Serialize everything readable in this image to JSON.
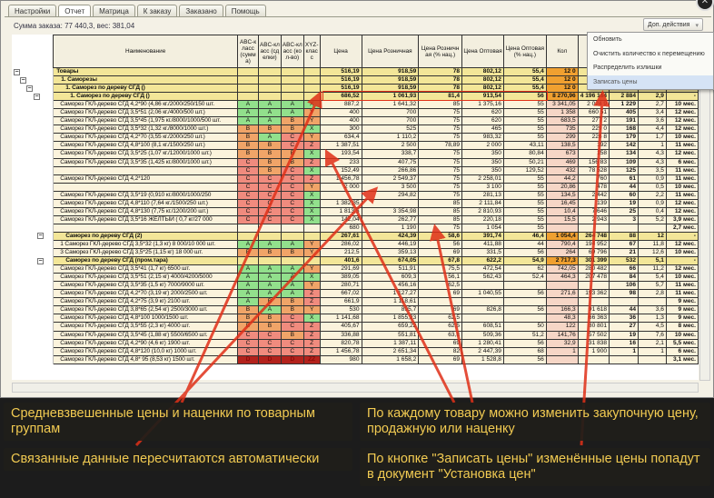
{
  "tabs": [
    "Настройки",
    "Отчет",
    "Матрица",
    "К заказу",
    "Заказано",
    "Помощь"
  ],
  "active_tab": 1,
  "order_summary": "Сумма заказа: 77 440,3, вес: 381,04",
  "actions_button": "Доп. действия",
  "menu": [
    "Обновить",
    "Очистить количество к перемещению",
    "Распределить излишки",
    "Записать цены"
  ],
  "menu_highlighted": 3,
  "columns": [
    "Наименование",
    "ABC-класс (сумма)",
    "ABC-класс (сделки)",
    "ABC-класс (кол-во)",
    "XYZ-класс",
    "Цена",
    "Цена Розничная",
    "Цена Розничная (% нац.)",
    "Цена Оптовая",
    "Цена Оптовая (% нац.)",
    "Кол",
    "",
    "",
    "",
    ""
  ],
  "rows": [
    {
      "t": "g",
      "lvl": 0,
      "v": [
        "Товары",
        "",
        "",
        "",
        "",
        "516,19",
        "918,59",
        "78",
        "802,12",
        "55,4",
        "12 0",
        "",
        "",
        "",
        ""
      ]
    },
    {
      "t": "g",
      "lvl": 1,
      "v": [
        "1. Саморезы",
        "",
        "",
        "",
        "",
        "516,19",
        "918,59",
        "78",
        "802,12",
        "55,4",
        "12 0",
        "",
        "",
        "",
        ""
      ]
    },
    {
      "t": "g",
      "lvl": 2,
      "v": [
        "1. Саморез по дереву  СГД ()",
        "",
        "",
        "",
        "",
        "516,19",
        "918,59",
        "78",
        "802,12",
        "55,4",
        "12 0",
        "",
        "",
        "",
        ""
      ]
    },
    {
      "t": "g",
      "lvl": 3,
      "v": [
        "1. Саморез по дереву  СГД ()",
        "",
        "",
        "",
        "",
        "686,52",
        "1 061,93",
        "81,4",
        "913,54",
        "56",
        "8 270,96",
        "4 196 164",
        "2 884",
        "2,9",
        "-"
      ]
    },
    {
      "t": "i",
      "v": [
        "Саморез ГКЛ-дерево СГД 4,2*90 (4,86 кг./2000/250/150 шт.",
        "A",
        "A",
        "A",
        "X",
        "887,2",
        "1 641,32",
        "85",
        "1 375,16",
        "55",
        "3 341,05",
        "2 024 9",
        "1 229",
        "2,7",
        "10 мес."
      ]
    },
    {
      "t": "i",
      "v": [
        "Саморез ГКЛ-дерево СГД 3,5*51 (2,06 кг./4000/500 шт.)",
        "A",
        "A",
        "A",
        "Y",
        "400",
        "700",
        "75",
        "620",
        "55",
        "1 358",
        "660 51",
        "405",
        "3,4",
        "12 мес."
      ]
    },
    {
      "t": "i",
      "v": [
        "Саморез ГКЛ-дерево СГД 3,5*45 (1,975 кг./8000/1000/500 шт.",
        "A",
        "A",
        "B",
        "Y",
        "400",
        "700",
        "75",
        "620",
        "55",
        "683,5",
        "277 2",
        "191",
        "3,6",
        "12 мес."
      ]
    },
    {
      "t": "i",
      "v": [
        "Саморез ГКЛ-дерево СГД 3,5*32 (1,32 кг./8000/1000 шт.)",
        "B",
        "B",
        "B",
        "X",
        "300",
        "525",
        "75",
        "465",
        "55",
        "735",
        "229 0",
        "168",
        "4,4",
        "12 мес."
      ]
    },
    {
      "t": "i",
      "v": [
        "Саморез ГКЛ-дерево СГД 4,2*70 (3,55 кг./2000/250 шт.)",
        "B",
        "A",
        "C",
        "Y",
        "634,4",
        "1 110,2",
        "75",
        "983,32",
        "55",
        "299",
        "226 8",
        "179",
        "1,7",
        "10 мес."
      ]
    },
    {
      "t": "i",
      "v": [
        "Саморез ГКЛ-дерево СГД 4,8*100 (8,1 кг./1500/250 шт.)",
        "B",
        "B",
        "C",
        "Z",
        "1 387,51",
        "2 500",
        "78,89",
        "2 000",
        "43,11",
        "138,5",
        "192",
        "142",
        "1",
        "11 мес."
      ]
    },
    {
      "t": "i",
      "v": [
        "Саморез ГКЛ-дерево СГД 3,5*25 (1,07 кг./12000/1000 шт.)",
        "B",
        "B",
        "B",
        "X",
        "193,54",
        "338,7",
        "75",
        "350",
        "80,84",
        "673",
        "158",
        "134",
        "4,3",
        "12 мес."
      ]
    },
    {
      "t": "i",
      "v": [
        "Саморез ГКЛ-дерево СГД 3,5*35 (1,425 кг./8000/1000 шт.)",
        "C",
        "B",
        "B",
        "Z",
        "233",
        "407,75",
        "75",
        "350",
        "50,21",
        "469",
        "156 83",
        "109",
        "4,3",
        "6 мес."
      ]
    },
    {
      "t": "i",
      "v": [
        "",
        "C",
        "B",
        "C",
        "X",
        "152,49",
        "266,86",
        "75",
        "350",
        "129,52",
        "432",
        "78 528",
        "125",
        "3,5",
        "11 мес."
      ]
    },
    {
      "t": "i",
      "v": [
        "Саморез ГКЛ-дерево СГД 4,2*120",
        "C",
        "C",
        "C",
        "Z",
        "1 456,78",
        "2 549,37",
        "75",
        "2 258,01",
        "55",
        "44,2",
        "760",
        "61",
        "0,9",
        "11 мес."
      ]
    },
    {
      "t": "i",
      "v": [
        "",
        "C",
        "C",
        "C",
        "Y",
        "2 000",
        "3 500",
        "75",
        "3 100",
        "55",
        "20,86",
        "478",
        "44",
        "0,5",
        "10 мес."
      ]
    },
    {
      "t": "i",
      "v": [
        "Саморез ГКЛ-дерево СГД 3,5*19  (0,910 кг./8000/1000/250",
        "C",
        "C",
        "C",
        "X",
        "",
        "294,82",
        "75",
        "281,13",
        "55",
        "134,5",
        "2 442",
        "60",
        "2,2",
        "11 мес."
      ]
    },
    {
      "t": "i",
      "v": [
        "Саморез ГКЛ-дерево СГД 4,8*110 (7,64 кг./1500/250 шт.)",
        "C",
        "C",
        "C",
        "X",
        "1 382,35",
        "",
        "85",
        "2 111,84",
        "55",
        "16,45",
        "139",
        "19",
        "0,9",
        "12 мес."
      ]
    },
    {
      "t": "i",
      "v": [
        "Саморез ГКЛ-дерево СГД 4,8*130 (7,75 кг./1200/200 шт.)",
        "C",
        "C",
        "C",
        "X",
        "1 813,5",
        "3 354,98",
        "85",
        "2 810,93",
        "55",
        "10,4",
        "7 646",
        "25",
        "0,4",
        "12 мес."
      ]
    },
    {
      "t": "i",
      "v": [
        "Саморез ГКЛ-дерево СГД 3,5*16  ЖЕЛТЫЙ  ( 0,7 кг/27 000",
        "C",
        "C",
        "C",
        "X",
        "142,04",
        "262,77",
        "85",
        "220,18",
        "55",
        "15,5",
        "2 943",
        "3",
        "5,2",
        "3,9 мес."
      ]
    },
    {
      "t": "i",
      "v": [
        "",
        "",
        "",
        "",
        "",
        "680",
        "1 190",
        "75",
        "1 054",
        "55",
        "",
        "",
        "",
        "",
        "2,7 мес."
      ]
    },
    {
      "t": "g",
      "lvl": 2,
      "v": [
        "Саморез по дереву  СГД (2)",
        "",
        "",
        "",
        "",
        "267,61",
        "424,39",
        "58,6",
        "391,74",
        "46,4",
        "1 054,4",
        "264 748",
        "88",
        "12",
        "-"
      ]
    },
    {
      "t": "i",
      "v": [
        "1 Саморез  ГКЛ-дерево СГД 3,5*32  (1,3 кг)  8 000/10 000 шт.",
        "A",
        "A",
        "A",
        "Y",
        "286,02",
        "446,19",
        "56",
        "411,88",
        "44",
        "790,4",
        "194 952",
        "67",
        "11,8",
        "12 мес."
      ]
    },
    {
      "t": "i",
      "v": [
        "3 Саморез  ГКЛ-дерево СГД 3,5*25  (1,15 кг)  18 000 шт.",
        "B",
        "B",
        "B",
        "Y",
        "212,5",
        "359,13",
        "69",
        "331,5",
        "56",
        "264",
        "69 796",
        "21",
        "12,6",
        "10 мес."
      ]
    },
    {
      "t": "g",
      "lvl": 2,
      "v": [
        "Саморез по дереву  СГД (пром.тара)",
        "",
        "",
        "",
        "",
        "401,6",
        "674,05",
        "67,8",
        "622,2",
        "54,9",
        "2 717,3",
        "301 399",
        "532",
        "5,1",
        "-"
      ]
    },
    {
      "t": "i",
      "v": [
        "Саморез  ГКЛ-дерево СГД 3,5*41  (1,7 кг)  6500 шт.",
        "A",
        "A",
        "A",
        "Y",
        "291,69",
        "511,91",
        "75,5",
        "472,54",
        "62",
        "742,05",
        "280 482",
        "66",
        "11,2",
        "12 мес."
      ]
    },
    {
      "t": "i",
      "v": [
        "Саморез  ГКЛ-дерево СГД 3,5*51  (2,15 кг)  4000/4200/5000",
        "A",
        "A",
        "A",
        "X",
        "389,05",
        "609,3",
        "56,1",
        "562,43",
        "52,4",
        "464,3",
        "207 478",
        "84",
        "5,4",
        "10 мес."
      ]
    },
    {
      "t": "i",
      "v": [
        "Саморез  ГКЛ-дерево СГД 3,5*35  (1,5 кг)  7000/9000 шт.",
        "A",
        "A",
        "A",
        "Y",
        "280,71",
        "456,16",
        "62,5",
        "",
        "",
        "",
        "",
        "106",
        "5,7",
        "11 мес."
      ]
    },
    {
      "t": "i",
      "v": [
        "Саморез  ГКЛ-дерево СГД 4,2*70  (3,19 кг)  2000/2500 шт.",
        "A",
        "A",
        "A",
        "Z",
        "667,02",
        "1 127,27",
        "69",
        "1 040,55",
        "56",
        "271,6",
        "193 362",
        "98",
        "2,8",
        "11 мес."
      ]
    },
    {
      "t": "i",
      "v": [
        "Саморез  ГКЛ-дерево СГД 4,2*75  (3,9 кг)  2100 шт.",
        "A",
        "B",
        "B",
        "Z",
        "661,9",
        "1 118,61",
        "",
        "",
        "",
        "",
        "",
        "",
        "",
        "9 мес."
      ]
    },
    {
      "t": "i",
      "v": [
        "Саморез  ГКЛ-дерево СГД 3,8*65  (2,54 кг)  2500/3000 шт.",
        "B",
        "A",
        "B",
        "Y",
        "530",
        "895,7",
        "69",
        "826,8",
        "56",
        "166,3",
        "91 618",
        "44",
        "3,6",
        "9 мес."
      ]
    },
    {
      "t": "i",
      "v": [
        "Саморез  ГКЛ-дерево СГД 4,8*100  1000/1500 шт.",
        "B",
        "B",
        "C",
        "X",
        "1 141,68",
        "1 855,23",
        "62,5",
        "",
        "",
        "48,3",
        "66 363",
        "36",
        "1,3",
        "9 мес."
      ]
    },
    {
      "t": "i",
      "v": [
        "Саморез  ГКЛ-дерево СГД 3,5*55  (2,3 кг)  4000 шт.",
        "B",
        "B",
        "C",
        "Z",
        "405,67",
        "659,22",
        "62,5",
        "608,51",
        "50",
        "122",
        "80 801",
        "27",
        "4,5",
        "8 мес."
      ]
    },
    {
      "t": "i",
      "v": [
        "Саморез  ГКЛ-дерево СГД 3,5*45  (1,88 кг)  5500/6500 шт.",
        "C",
        "C",
        "B",
        "Z",
        "336,88",
        "551,81",
        "63,8",
        "509,36",
        "51,2",
        "141,76",
        "57 502",
        "19",
        "7,6",
        "10 мес."
      ]
    },
    {
      "t": "i",
      "v": [
        "Саморез  ГКЛ-дерево СГД 4,2*90  (4,6 кг)  1900 шт.",
        "C",
        "C",
        "C",
        "Z",
        "820,78",
        "1 387,11",
        "69",
        "1 280,41",
        "56",
        "32,9",
        "31 838",
        "16",
        "2,1",
        "5,5 мес."
      ]
    },
    {
      "t": "i",
      "v": [
        "Саморез  ГКЛ-дерево СГД 4,8*120  (10,0 кг)  1000 шт.",
        "C",
        "C",
        "C",
        "Z",
        "1 456,78",
        "2 651,34",
        "82",
        "2 447,39",
        "68",
        "1",
        "1 900",
        "1",
        "1",
        "6 мес."
      ]
    },
    {
      "t": "i",
      "v": [
        "Саморез  ГКЛ-дерево СГД 4,8* 95  (8,53 кг)  1500 шт.",
        "D",
        "D",
        "D",
        "ZZ",
        "980",
        "1 658,2",
        "69",
        "1 528,8",
        "56",
        "",
        "",
        "",
        "",
        "3,1 мес."
      ]
    }
  ],
  "callouts": [
    "Средневзвешенные цены и наценки по товарным группам",
    "По каждому товару можно изменить закупочную цену, продажную или наценку",
    "Связанные данные пересчитаются автоматически",
    "По кнопке \"Записать цены\" изменённые цены попадут в документ \"Установка цен\""
  ],
  "colors": {
    "accent_callout_text": "#f2cb52",
    "arrow": "#e03018",
    "group_row": "#f3e698",
    "item_row": "#fbf3dc",
    "class_A": "#92e08c",
    "class_B": "#f0a468",
    "class_C": "#f08b7e",
    "class_D": "#b3221c"
  },
  "icons": {
    "close": "close-icon",
    "tree_toggle": "minus-box-icon",
    "dropdown": "chevron-down-icon"
  }
}
